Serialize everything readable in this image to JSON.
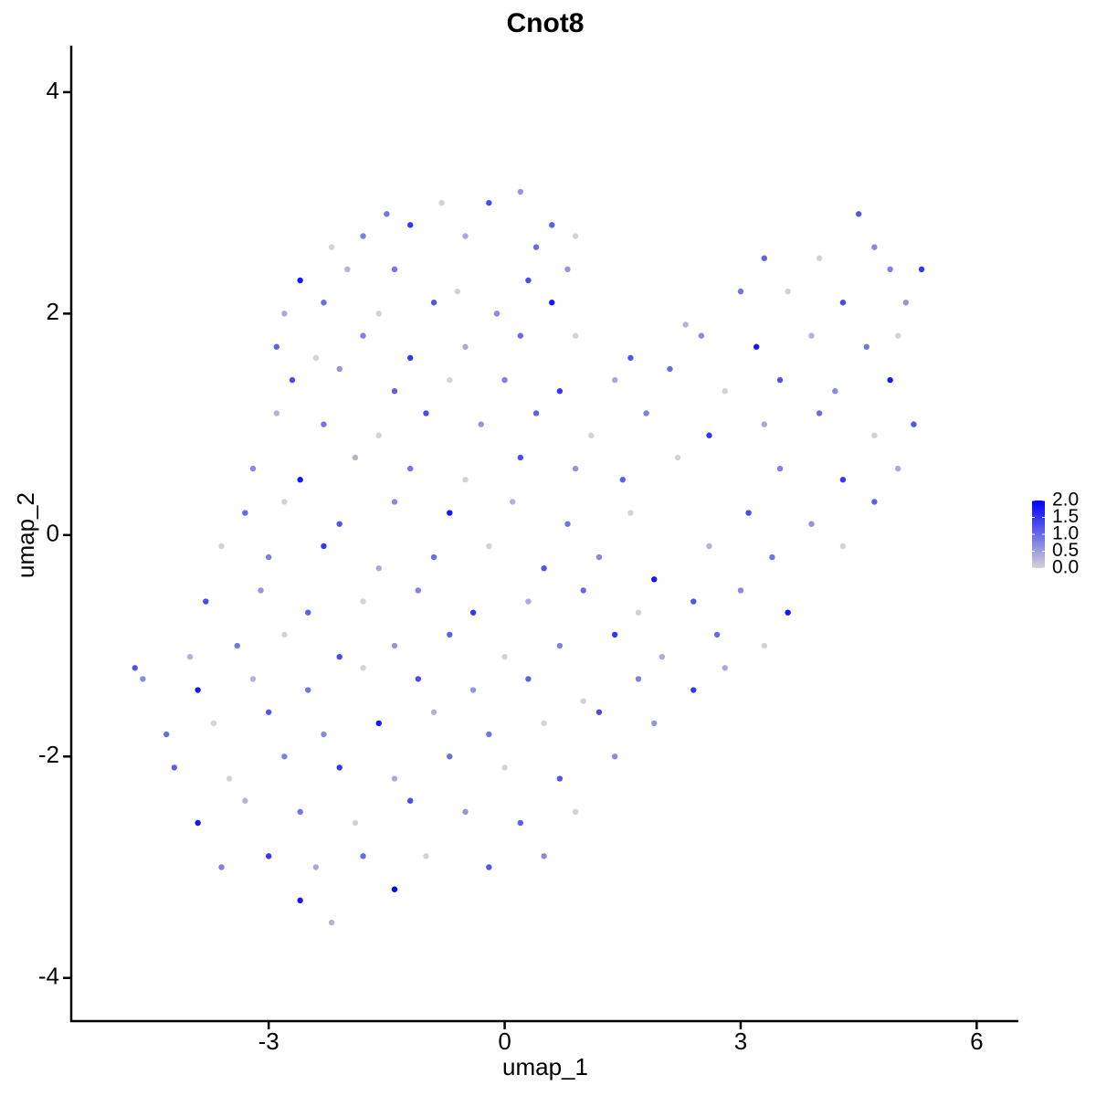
{
  "chart_data": {
    "type": "scatter",
    "title": "Cnot8",
    "x_label": "umap_1",
    "y_label": "umap_2",
    "xlim": [
      -5.51,
      6.53
    ],
    "ylim": [
      -4.39,
      4.42
    ],
    "xticks": [
      -3,
      0,
      3,
      6
    ],
    "yticks": [
      -4,
      -2,
      0,
      2,
      4
    ],
    "color_low": "#d3d3d3",
    "color_high": "#0000ff",
    "clim": [
      0,
      2
    ],
    "colorbar_ticks": [
      {
        "value": 0,
        "label": "0.0"
      },
      {
        "value": 0.5,
        "label": "0.5"
      },
      {
        "value": 1,
        "label": "1.0"
      },
      {
        "value": 1.5,
        "label": "1.5"
      },
      {
        "value": 2,
        "label": "2.0"
      }
    ],
    "x": [
      -1.5,
      -0.8,
      -0.2,
      0.2,
      0.6,
      -2.2,
      -1.8,
      -1.2,
      -0.5,
      0.4,
      0.9,
      4.5,
      4.7,
      -2.6,
      -2.0,
      -1.4,
      -0.6,
      0.3,
      0.8,
      3.3,
      4.0,
      4.9,
      5.3,
      -2.8,
      -2.3,
      -1.6,
      -0.9,
      -0.1,
      0.6,
      2.3,
      3.0,
      3.6,
      4.3,
      5.1,
      -2.9,
      -2.4,
      -1.8,
      -1.2,
      -0.5,
      0.2,
      0.9,
      1.6,
      2.5,
      3.2,
      3.9,
      4.6,
      5.0,
      -2.7,
      -2.1,
      -1.4,
      -0.7,
      0.0,
      0.7,
      1.4,
      2.1,
      2.8,
      3.5,
      4.2,
      4.9,
      -2.9,
      -2.3,
      -1.6,
      -1.0,
      -0.3,
      0.4,
      1.1,
      1.8,
      2.6,
      3.3,
      4.0,
      4.7,
      5.2,
      -3.2,
      -2.6,
      -1.9,
      -1.2,
      -0.5,
      0.2,
      0.9,
      1.5,
      2.2,
      3.5,
      4.3,
      5.0,
      -3.3,
      -2.8,
      -2.1,
      -1.4,
      -0.7,
      0.1,
      0.8,
      1.6,
      3.1,
      3.9,
      4.7,
      -3.6,
      -3.0,
      -2.3,
      -1.6,
      -0.9,
      -0.2,
      0.5,
      1.2,
      1.9,
      2.6,
      3.4,
      4.3,
      -3.8,
      -3.1,
      -2.5,
      -1.8,
      -1.1,
      -0.4,
      0.3,
      1.0,
      1.7,
      2.4,
      3.0,
      3.6,
      -4.0,
      -3.4,
      -2.8,
      -2.1,
      -1.4,
      -0.7,
      0.0,
      0.7,
      1.4,
      2.0,
      2.7,
      3.3,
      -4.7,
      -4.6,
      -3.9,
      -3.2,
      -2.5,
      -1.8,
      -1.1,
      -0.4,
      0.3,
      1.0,
      1.7,
      2.4,
      2.8,
      -4.3,
      -3.7,
      -3.0,
      -2.3,
      -1.6,
      -0.9,
      -0.2,
      0.5,
      1.2,
      1.9,
      -4.2,
      -3.5,
      -2.8,
      -2.1,
      -1.4,
      -0.7,
      0.0,
      0.7,
      1.4,
      -3.9,
      -3.3,
      -2.6,
      -1.9,
      -1.2,
      -0.5,
      0.2,
      0.9,
      -3.6,
      -3.0,
      -2.4,
      -1.8,
      -1.0,
      -0.2,
      0.5,
      -2.6,
      -2.2,
      -1.4
    ],
    "y": [
      2.9,
      3.0,
      3.0,
      3.1,
      2.8,
      2.6,
      2.7,
      2.8,
      2.7,
      2.6,
      2.7,
      2.9,
      2.6,
      2.3,
      2.4,
      2.4,
      2.2,
      2.3,
      2.4,
      2.5,
      2.5,
      2.4,
      2.4,
      2.0,
      2.1,
      2.0,
      2.1,
      2.0,
      2.1,
      1.9,
      2.2,
      2.2,
      2.1,
      2.1,
      1.7,
      1.6,
      1.8,
      1.6,
      1.7,
      1.8,
      1.8,
      1.6,
      1.8,
      1.7,
      1.8,
      1.7,
      1.8,
      1.4,
      1.5,
      1.3,
      1.4,
      1.4,
      1.3,
      1.4,
      1.5,
      1.3,
      1.4,
      1.3,
      1.4,
      1.1,
      1.0,
      0.9,
      1.1,
      1.0,
      1.1,
      0.9,
      1.1,
      0.9,
      1.0,
      1.1,
      0.9,
      1.0,
      0.6,
      0.5,
      0.7,
      0.6,
      0.5,
      0.7,
      0.6,
      0.5,
      0.7,
      0.6,
      0.5,
      0.6,
      0.2,
      0.3,
      0.1,
      0.3,
      0.2,
      0.3,
      0.1,
      0.2,
      0.2,
      0.1,
      0.3,
      -0.1,
      -0.2,
      -0.1,
      -0.3,
      -0.2,
      -0.1,
      -0.3,
      -0.2,
      -0.4,
      -0.1,
      -0.2,
      -0.1,
      -0.6,
      -0.5,
      -0.7,
      -0.6,
      -0.5,
      -0.7,
      -0.6,
      -0.5,
      -0.7,
      -0.6,
      -0.5,
      -0.7,
      -1.1,
      -1.0,
      -0.9,
      -1.1,
      -1.0,
      -0.9,
      -1.1,
      -1.0,
      -0.9,
      -1.1,
      -0.9,
      -1.0,
      -1.2,
      -1.3,
      -1.4,
      -1.3,
      -1.4,
      -1.2,
      -1.3,
      -1.4,
      -1.3,
      -1.5,
      -1.3,
      -1.4,
      -1.2,
      -1.8,
      -1.7,
      -1.6,
      -1.8,
      -1.7,
      -1.6,
      -1.8,
      -1.7,
      -1.6,
      -1.7,
      -2.1,
      -2.2,
      -2.0,
      -2.1,
      -2.2,
      -2.0,
      -2.1,
      -2.2,
      -2.0,
      -2.6,
      -2.4,
      -2.5,
      -2.6,
      -2.4,
      -2.5,
      -2.6,
      -2.5,
      -3.0,
      -2.9,
      -3.0,
      -2.9,
      -2.9,
      -3.0,
      -2.9,
      -3.3,
      -3.5,
      -3.2
    ],
    "values": [
      0.9,
      0,
      1.3,
      0.6,
      1.1,
      0,
      0.8,
      1.5,
      0.4,
      1.0,
      0,
      1.2,
      0.7,
      1.8,
      0.3,
      0.9,
      0,
      1.3,
      0.6,
      1.1,
      0,
      0.8,
      1.5,
      0.4,
      1.0,
      0,
      1.2,
      0.7,
      1.8,
      0.3,
      0.9,
      0,
      1.3,
      0.6,
      1.1,
      0,
      0.8,
      1.5,
      0.4,
      1.0,
      0,
      1.2,
      0.7,
      1.8,
      0.3,
      0.9,
      0,
      1.3,
      0.6,
      1.1,
      0,
      0.8,
      1.5,
      0.4,
      1.0,
      0,
      1.2,
      0.7,
      1.8,
      0.3,
      0.9,
      0,
      1.3,
      0.6,
      1.1,
      0,
      0.8,
      1.5,
      0.4,
      1.0,
      0,
      1.2,
      0.7,
      1.8,
      0.3,
      0.9,
      0,
      1.3,
      0.6,
      1.1,
      0,
      0.8,
      1.5,
      0.4,
      1.0,
      0,
      1.2,
      0.7,
      1.8,
      0.3,
      0.9,
      0,
      1.3,
      0.6,
      1.1,
      0,
      0.8,
      1.5,
      0.4,
      1.0,
      0,
      1.2,
      0.7,
      1.8,
      0.3,
      0.9,
      0,
      1.3,
      0.6,
      1.1,
      0,
      0.8,
      1.5,
      0.4,
      1.0,
      0,
      1.2,
      0.7,
      1.8,
      0.3,
      0.9,
      0,
      1.3,
      0.6,
      1.1,
      0,
      0.8,
      1.5,
      0.4,
      1.0,
      0,
      1.2,
      0.7,
      1.8,
      0.3,
      0.9,
      0,
      1.3,
      0.6,
      1.1,
      0,
      0.8,
      1.5,
      0.4,
      1.0,
      0,
      1.2,
      0.7,
      1.8,
      0.3,
      0.9,
      0,
      1.3,
      0.6,
      1.1,
      0,
      0.8,
      1.5,
      0.4,
      1.0,
      0,
      1.2,
      0.7,
      1.8,
      0.3,
      0.9,
      0,
      1.3,
      0.6,
      1.1,
      0,
      0.8,
      1.5,
      0.4,
      1.0,
      0,
      1.2,
      0.7,
      1.8,
      0.3,
      2.0
    ]
  }
}
